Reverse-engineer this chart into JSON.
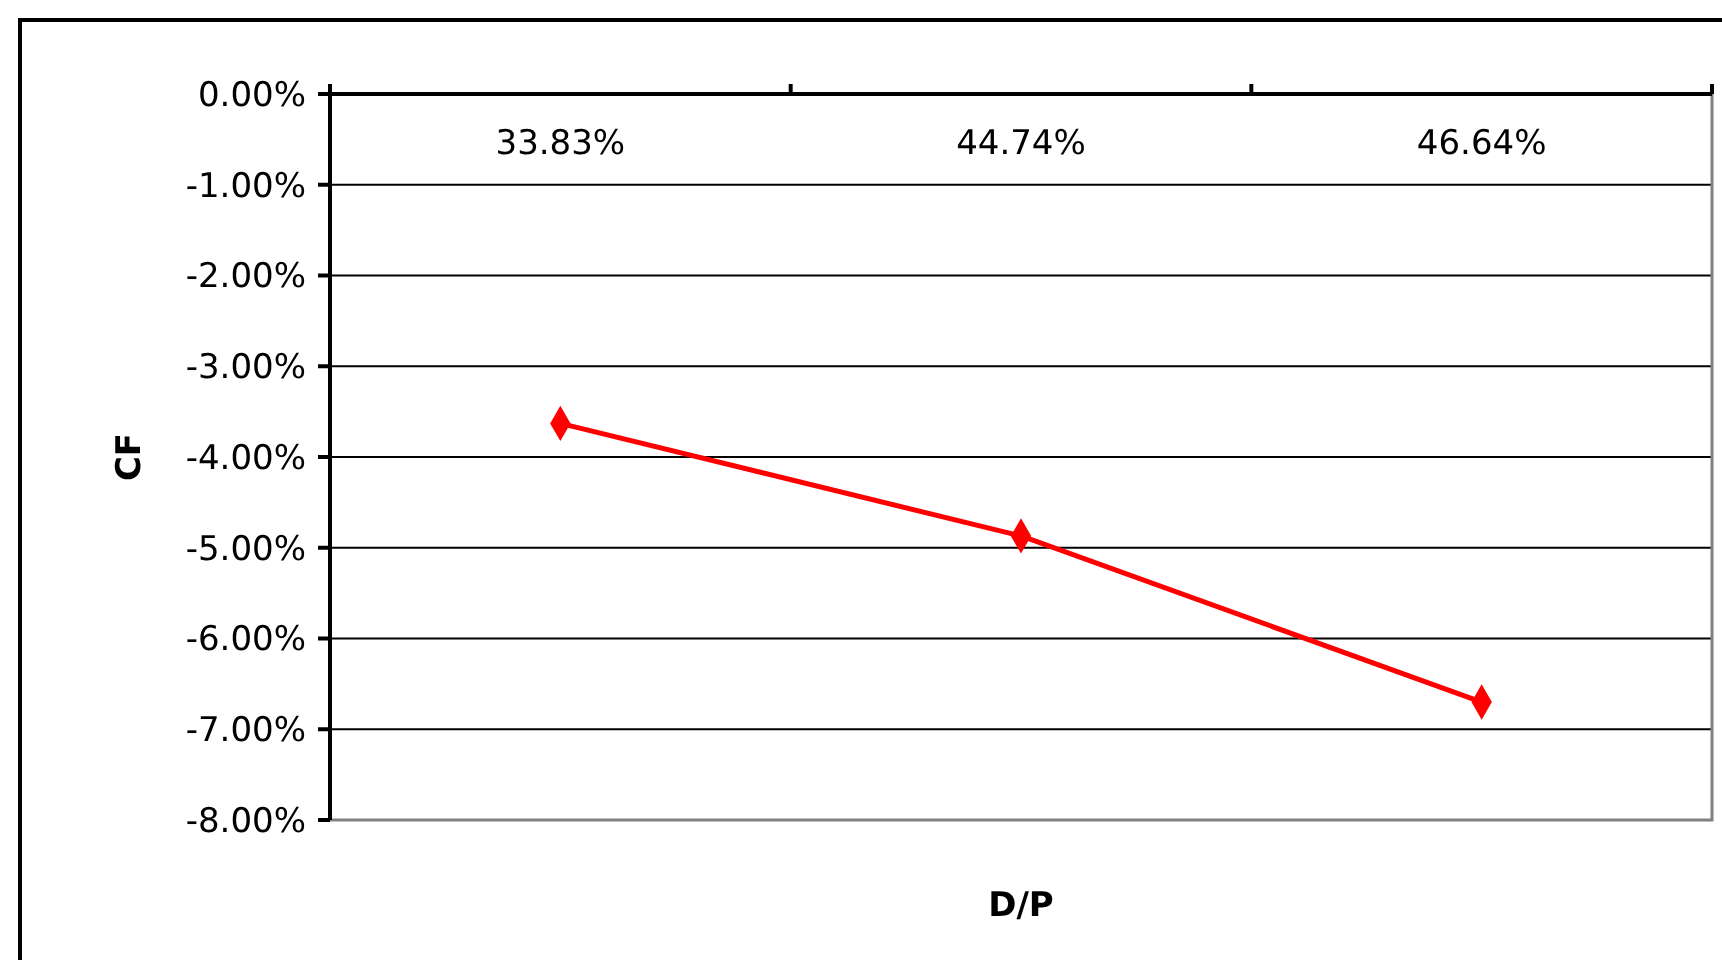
{
  "chart_data": {
    "type": "line",
    "xlabel": "D/P",
    "ylabel": "CF",
    "categories": [
      "33.83%",
      "44.74%",
      "46.64%"
    ],
    "series": [
      {
        "color": "#ff0000",
        "values": [
          -3.63,
          -4.87,
          -6.7
        ]
      }
    ],
    "ylim": [
      -8,
      0
    ],
    "yticks": [
      {
        "value": 0,
        "label": "0.00%"
      },
      {
        "value": -1,
        "label": "-1.00%"
      },
      {
        "value": -2,
        "label": "-2.00%"
      },
      {
        "value": -3,
        "label": "-3.00%"
      },
      {
        "value": -4,
        "label": "-4.00%"
      },
      {
        "value": -5,
        "label": "-5.00%"
      },
      {
        "value": -6,
        "label": "-6.00%"
      },
      {
        "value": -7,
        "label": "-7.00%"
      },
      {
        "value": -8,
        "label": "-8.00%"
      }
    ],
    "grid": "y",
    "marker": "diamond",
    "line_style": "solid"
  }
}
